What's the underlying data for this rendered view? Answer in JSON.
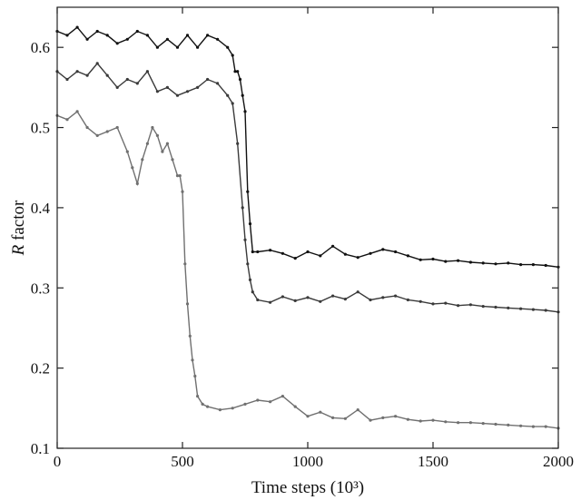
{
  "chart_data": {
    "type": "line",
    "title": "",
    "xlabel": "Time steps (10³)",
    "ylabel_italic": "R",
    "ylabel_rest": " factor",
    "xlim": [
      0,
      2000
    ],
    "ylim": [
      0.1,
      0.65
    ],
    "xticks": [
      0,
      500,
      1000,
      1500,
      2000
    ],
    "yticks": [
      0.1,
      0.2,
      0.3,
      0.4,
      0.5,
      0.6
    ],
    "grid": false,
    "legend": "none",
    "series": [
      {
        "color": "#111111",
        "x": [
          0,
          40,
          80,
          120,
          160,
          200,
          240,
          280,
          320,
          360,
          400,
          440,
          480,
          520,
          560,
          600,
          640,
          680,
          700,
          710,
          720,
          730,
          740,
          750,
          760,
          770,
          780,
          800,
          850,
          900,
          950,
          1000,
          1050,
          1100,
          1150,
          1200,
          1250,
          1300,
          1350,
          1400,
          1450,
          1500,
          1550,
          1600,
          1650,
          1700,
          1750,
          1800,
          1850,
          1900,
          1950,
          2000
        ],
        "y": [
          0.62,
          0.615,
          0.625,
          0.61,
          0.62,
          0.615,
          0.605,
          0.61,
          0.62,
          0.615,
          0.6,
          0.61,
          0.6,
          0.615,
          0.6,
          0.615,
          0.61,
          0.6,
          0.59,
          0.57,
          0.57,
          0.56,
          0.54,
          0.52,
          0.42,
          0.38,
          0.345,
          0.345,
          0.347,
          0.343,
          0.337,
          0.345,
          0.34,
          0.352,
          0.342,
          0.338,
          0.343,
          0.348,
          0.345,
          0.34,
          0.335,
          0.336,
          0.333,
          0.334,
          0.332,
          0.331,
          0.33,
          0.331,
          0.329,
          0.329,
          0.328,
          0.326
        ]
      },
      {
        "color": "#3a3a3a",
        "x": [
          0,
          40,
          80,
          120,
          160,
          200,
          240,
          280,
          320,
          360,
          400,
          440,
          480,
          520,
          560,
          600,
          640,
          680,
          700,
          720,
          740,
          750,
          760,
          770,
          780,
          800,
          850,
          900,
          950,
          1000,
          1050,
          1100,
          1150,
          1200,
          1250,
          1300,
          1350,
          1400,
          1450,
          1500,
          1550,
          1600,
          1650,
          1700,
          1750,
          1800,
          1850,
          1900,
          1950,
          2000
        ],
        "y": [
          0.57,
          0.56,
          0.57,
          0.565,
          0.58,
          0.565,
          0.55,
          0.56,
          0.555,
          0.57,
          0.545,
          0.55,
          0.54,
          0.545,
          0.55,
          0.56,
          0.555,
          0.54,
          0.53,
          0.48,
          0.4,
          0.36,
          0.33,
          0.31,
          0.295,
          0.285,
          0.282,
          0.289,
          0.284,
          0.288,
          0.283,
          0.29,
          0.286,
          0.295,
          0.285,
          0.288,
          0.29,
          0.285,
          0.283,
          0.28,
          0.281,
          0.278,
          0.279,
          0.277,
          0.276,
          0.275,
          0.274,
          0.273,
          0.272,
          0.27
        ]
      },
      {
        "color": "#707070",
        "x": [
          0,
          40,
          80,
          120,
          160,
          200,
          240,
          280,
          300,
          320,
          340,
          360,
          380,
          400,
          420,
          440,
          460,
          480,
          490,
          500,
          510,
          520,
          530,
          540,
          550,
          560,
          580,
          600,
          650,
          700,
          750,
          800,
          850,
          900,
          950,
          1000,
          1050,
          1100,
          1150,
          1200,
          1250,
          1300,
          1350,
          1400,
          1450,
          1500,
          1550,
          1600,
          1650,
          1700,
          1750,
          1800,
          1850,
          1900,
          1950,
          2000
        ],
        "y": [
          0.515,
          0.51,
          0.52,
          0.5,
          0.49,
          0.495,
          0.5,
          0.47,
          0.45,
          0.43,
          0.46,
          0.48,
          0.5,
          0.49,
          0.47,
          0.48,
          0.46,
          0.44,
          0.44,
          0.42,
          0.33,
          0.28,
          0.24,
          0.21,
          0.19,
          0.165,
          0.155,
          0.152,
          0.148,
          0.15,
          0.155,
          0.16,
          0.158,
          0.165,
          0.152,
          0.14,
          0.145,
          0.138,
          0.137,
          0.148,
          0.135,
          0.138,
          0.14,
          0.136,
          0.134,
          0.135,
          0.133,
          0.132,
          0.132,
          0.131,
          0.13,
          0.129,
          0.128,
          0.127,
          0.127,
          0.125
        ]
      }
    ]
  }
}
